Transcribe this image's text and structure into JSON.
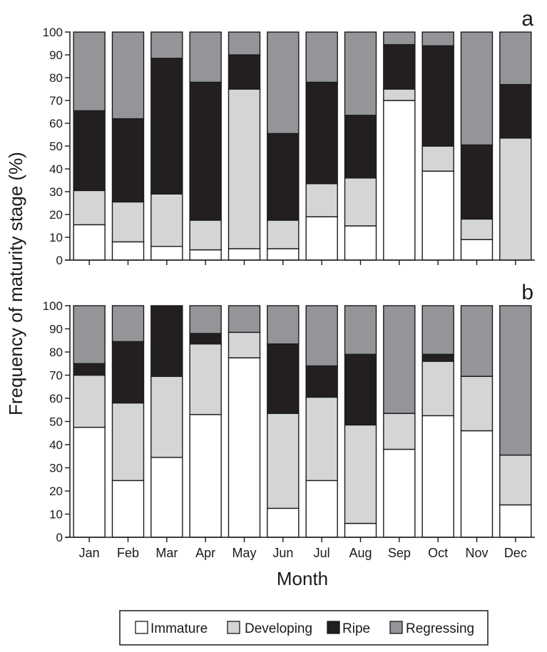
{
  "chart_data": [
    {
      "type": "bar",
      "stacked": true,
      "panel_label": "a",
      "categories": [
        "Jan",
        "Feb",
        "Mar",
        "Apr",
        "May",
        "Jun",
        "Jul",
        "Aug",
        "Sep",
        "Oct",
        "Nov",
        "Dec"
      ],
      "series": [
        {
          "name": "Immature",
          "values": [
            15.5,
            8,
            6,
            4.5,
            5,
            5,
            19,
            15,
            70,
            39,
            9,
            0
          ]
        },
        {
          "name": "Developing",
          "values": [
            15,
            17.5,
            23,
            13,
            70,
            12.5,
            14.5,
            21,
            5,
            11,
            9,
            53.5
          ]
        },
        {
          "name": "Ripe",
          "values": [
            35,
            36.5,
            59.5,
            60.5,
            15,
            38,
            44.5,
            27.5,
            19.5,
            44,
            32.5,
            23.5
          ]
        },
        {
          "name": "Regressing",
          "values": [
            34.5,
            38,
            11.5,
            22,
            10,
            44.5,
            22,
            36.5,
            5.5,
            6,
            49.5,
            23
          ]
        }
      ],
      "ylim": [
        0,
        100
      ],
      "yticks": [
        0,
        10,
        20,
        30,
        40,
        50,
        60,
        70,
        80,
        90,
        100
      ]
    },
    {
      "type": "bar",
      "stacked": true,
      "panel_label": "b",
      "categories": [
        "Jan",
        "Feb",
        "Mar",
        "Apr",
        "May",
        "Jun",
        "Jul",
        "Aug",
        "Sep",
        "Oct",
        "Nov",
        "Dec"
      ],
      "series": [
        {
          "name": "Immature",
          "values": [
            47.5,
            24.5,
            34.5,
            53,
            77.5,
            12.5,
            24.5,
            6,
            38,
            52.5,
            46,
            14
          ]
        },
        {
          "name": "Developing",
          "values": [
            22.5,
            33.5,
            35,
            30.5,
            11,
            41,
            36,
            42.5,
            15.5,
            23.5,
            23.5,
            21.5
          ]
        },
        {
          "name": "Ripe",
          "values": [
            5,
            26.5,
            30.5,
            4.5,
            0,
            30,
            13.5,
            30.5,
            0,
            3,
            0,
            0
          ]
        },
        {
          "name": "Regressing",
          "values": [
            25,
            15.5,
            0,
            12,
            11.5,
            16.5,
            26,
            21,
            46.5,
            21,
            30.5,
            64.5
          ]
        }
      ],
      "ylim": [
        0,
        100
      ],
      "yticks": [
        0,
        10,
        20,
        30,
        40,
        50,
        60,
        70,
        80,
        90,
        100
      ]
    }
  ],
  "axes": {
    "ylabel": "Frequency of maturity stage (%)",
    "xlabel": "Month"
  },
  "legend": {
    "placement": "bottom-center",
    "entries": [
      "Immature",
      "Developing",
      "Ripe",
      "Regressing"
    ]
  },
  "colors": {
    "Immature": "#ffffff",
    "Developing": "#d4d5d7",
    "Ripe": "#231f20",
    "Regressing": "#939598",
    "outline": "#1a1a1a"
  }
}
